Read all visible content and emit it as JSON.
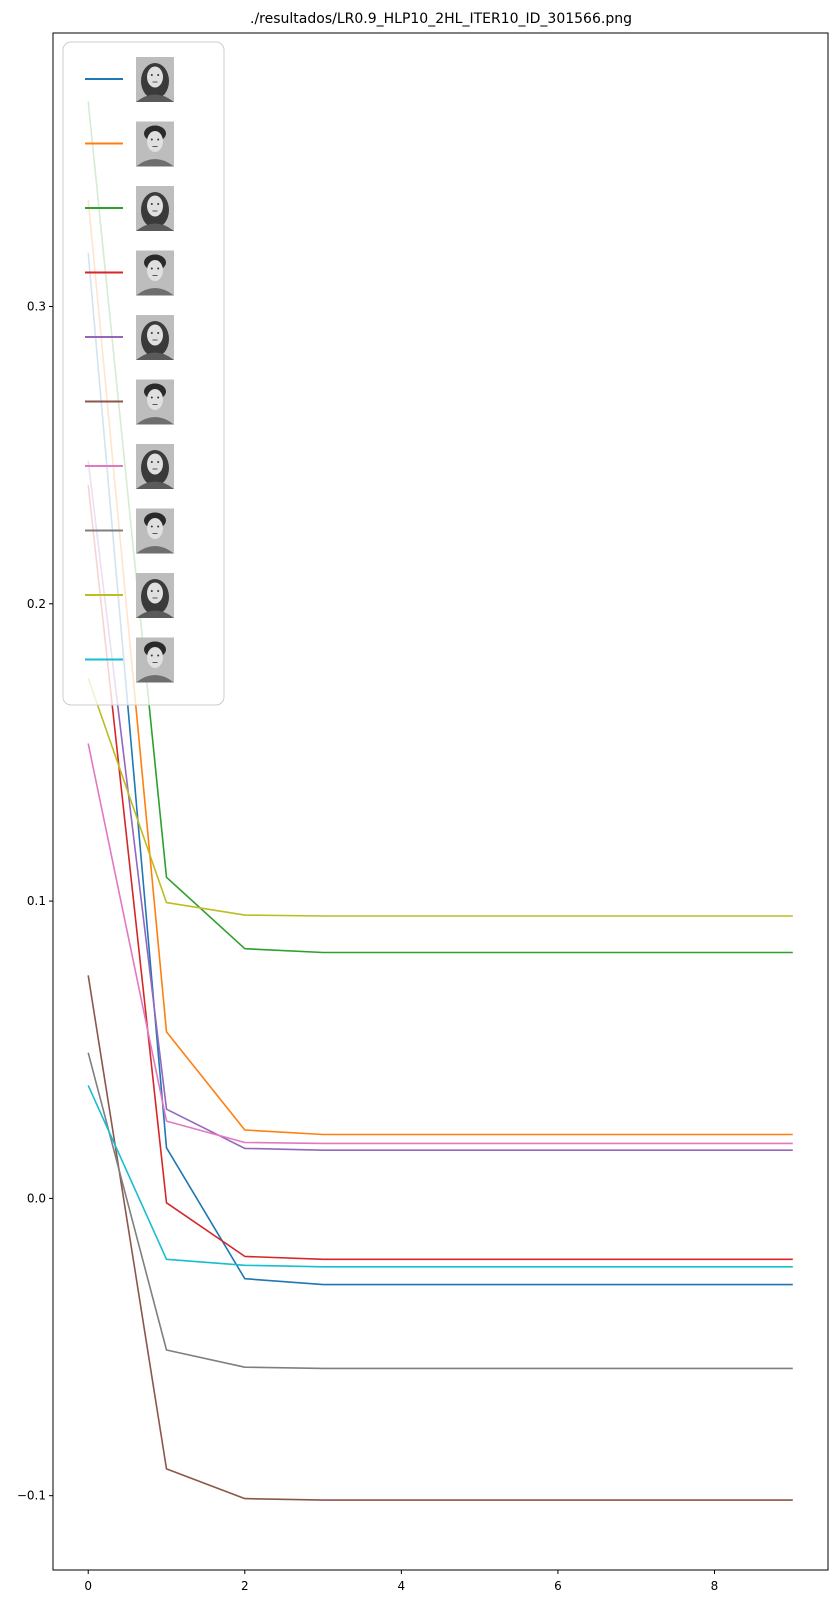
{
  "chart_data": {
    "type": "line",
    "title": "./resultados/LR0.9_HLP10_2HL_ITER10_ID_301566.png",
    "xlabel": "",
    "ylabel": "",
    "x": [
      0,
      1,
      2,
      3,
      4,
      5,
      6,
      7,
      8,
      9
    ],
    "xlim": [
      -0.45,
      9.45
    ],
    "ylim": [
      -0.125,
      0.392
    ],
    "xticks": [
      0,
      2,
      4,
      6,
      8
    ],
    "xtick_labels": [
      "0",
      "2",
      "4",
      "6",
      "8"
    ],
    "yticks": [
      -0.1,
      0.0,
      0.1,
      0.2,
      0.3
    ],
    "ytick_labels": [
      "−0.1",
      "0.0",
      "0.1",
      "0.2",
      "0.3"
    ],
    "grid": false,
    "legend": {
      "placement": "top-left",
      "entry_kind": "face-photo-thumbnail"
    },
    "series": [
      {
        "color": "#1f77b4",
        "values": [
          0.318,
          0.017,
          -0.027,
          -0.029,
          -0.029,
          -0.029,
          -0.029,
          -0.029,
          -0.029,
          -0.029
        ]
      },
      {
        "color": "#ff7f0e",
        "values": [
          0.336,
          0.056,
          0.023,
          0.0215,
          0.0215,
          0.0215,
          0.0215,
          0.0215,
          0.0215,
          0.0215
        ]
      },
      {
        "color": "#2ca02c",
        "values": [
          0.369,
          0.108,
          0.084,
          0.0827,
          0.0827,
          0.0827,
          0.0827,
          0.0827,
          0.0827,
          0.0827
        ]
      },
      {
        "color": "#d62728",
        "values": [
          0.24,
          -0.0015,
          -0.0195,
          -0.0205,
          -0.0205,
          -0.0205,
          -0.0205,
          -0.0205,
          -0.0205,
          -0.0205
        ]
      },
      {
        "color": "#9467bd",
        "values": [
          0.248,
          0.03,
          0.0168,
          0.0162,
          0.0162,
          0.0162,
          0.0162,
          0.0162,
          0.0162,
          0.0162
        ]
      },
      {
        "color": "#8c564b",
        "values": [
          0.075,
          -0.091,
          -0.101,
          -0.1015,
          -0.1015,
          -0.1015,
          -0.1015,
          -0.1015,
          -0.1015,
          -0.1015
        ]
      },
      {
        "color": "#e377c2",
        "values": [
          0.153,
          0.026,
          0.0188,
          0.0185,
          0.0185,
          0.0185,
          0.0185,
          0.0185,
          0.0185,
          0.0185
        ]
      },
      {
        "color": "#7f7f7f",
        "values": [
          0.049,
          -0.051,
          -0.0568,
          -0.0572,
          -0.0572,
          -0.0572,
          -0.0572,
          -0.0572,
          -0.0572,
          -0.0572
        ]
      },
      {
        "color": "#bcbd22",
        "values": [
          0.175,
          0.0995,
          0.0953,
          0.095,
          0.095,
          0.095,
          0.095,
          0.095,
          0.095,
          0.095
        ]
      },
      {
        "color": "#17becf",
        "values": [
          0.038,
          -0.0205,
          -0.0225,
          -0.023,
          -0.023,
          -0.023,
          -0.023,
          -0.023,
          -0.023,
          -0.023
        ]
      }
    ]
  }
}
